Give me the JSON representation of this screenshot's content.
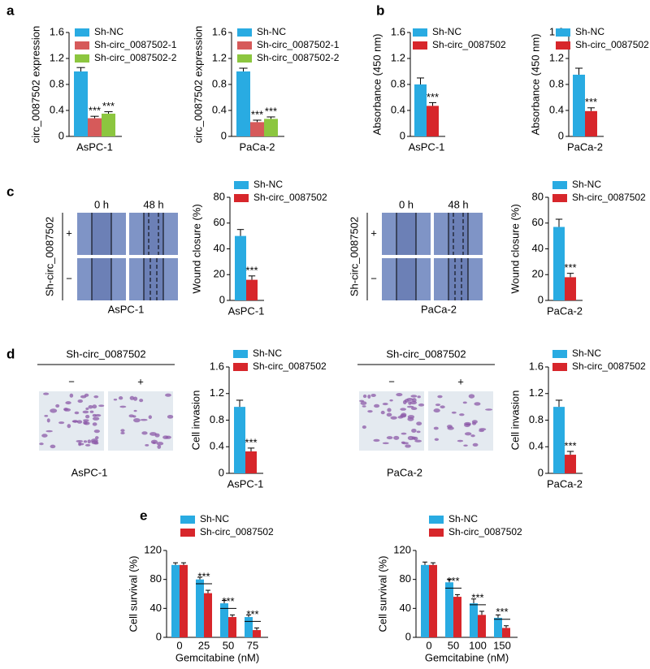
{
  "panel_labels": [
    "a",
    "b",
    "c",
    "d",
    "e"
  ],
  "chart_data": [
    {
      "type": "bar",
      "ylabel": "circ_0087502 expression",
      "categories": [
        "AsPC-1"
      ],
      "ylim": [
        0,
        1.6
      ],
      "yticks": [
        0,
        0.4,
        0.8,
        1.2,
        1.6
      ],
      "series": [
        {
          "name": "Sh-NC",
          "color": "#29abe2",
          "values": [
            1.0
          ],
          "errors": [
            0.06
          ]
        },
        {
          "name": "Sh-circ_0087502-1",
          "color": "#d65a5a",
          "values": [
            0.28
          ],
          "errors": [
            0.03
          ],
          "significance": "***"
        },
        {
          "name": "Sh-circ_0087502-2",
          "color": "#8cc63f",
          "values": [
            0.35
          ],
          "errors": [
            0.03
          ],
          "significance": "***"
        }
      ]
    },
    {
      "type": "bar",
      "ylabel": "circ_0087502 expression",
      "categories": [
        "PaCa-2"
      ],
      "ylim": [
        0,
        1.6
      ],
      "yticks": [
        0,
        0.4,
        0.8,
        1.2,
        1.6
      ],
      "series": [
        {
          "name": "Sh-NC",
          "color": "#29abe2",
          "values": [
            1.0
          ],
          "errors": [
            0.05
          ]
        },
        {
          "name": "Sh-circ_0087502-1",
          "color": "#d65a5a",
          "values": [
            0.22
          ],
          "errors": [
            0.03
          ],
          "significance": "***"
        },
        {
          "name": "Sh-circ_0087502-2",
          "color": "#8cc63f",
          "values": [
            0.27
          ],
          "errors": [
            0.03
          ],
          "significance": "***"
        }
      ]
    },
    {
      "type": "bar",
      "ylabel": "Absorbance (450 nm)",
      "categories": [
        "AsPC-1"
      ],
      "ylim": [
        0,
        1.6
      ],
      "yticks": [
        0,
        0.4,
        0.8,
        1.2,
        1.6
      ],
      "series": [
        {
          "name": "Sh-NC",
          "color": "#29abe2",
          "values": [
            0.8
          ],
          "errors": [
            0.1
          ]
        },
        {
          "name": "Sh-circ_0087502",
          "color": "#d7262b",
          "values": [
            0.47
          ],
          "errors": [
            0.05
          ],
          "significance": "***"
        }
      ]
    },
    {
      "type": "bar",
      "ylabel": "Absorbance (450 nm)",
      "categories": [
        "PaCa-2"
      ],
      "ylim": [
        0,
        1.6
      ],
      "yticks": [
        0,
        0.4,
        0.8,
        1.2,
        1.6
      ],
      "series": [
        {
          "name": "Sh-NC",
          "color": "#29abe2",
          "values": [
            0.95
          ],
          "errors": [
            0.1
          ]
        },
        {
          "name": "Sh-circ_0087502",
          "color": "#d7262b",
          "values": [
            0.39
          ],
          "errors": [
            0.05
          ],
          "significance": "***"
        }
      ]
    },
    {
      "type": "bar",
      "ylabel": "Wound closure (%)",
      "categories": [
        "AsPC-1"
      ],
      "ylim": [
        0,
        80
      ],
      "yticks": [
        0,
        20,
        40,
        60,
        80
      ],
      "series": [
        {
          "name": "Sh-NC",
          "color": "#29abe2",
          "values": [
            50
          ],
          "errors": [
            5
          ]
        },
        {
          "name": "Sh-circ_0087502",
          "color": "#d7262b",
          "values": [
            16
          ],
          "errors": [
            3
          ],
          "significance": "***"
        }
      ]
    },
    {
      "type": "bar",
      "ylabel": "Wound closure (%)",
      "categories": [
        "PaCa-2"
      ],
      "ylim": [
        0,
        80
      ],
      "yticks": [
        0,
        20,
        40,
        60,
        80
      ],
      "series": [
        {
          "name": "Sh-NC",
          "color": "#29abe2",
          "values": [
            57
          ],
          "errors": [
            6
          ]
        },
        {
          "name": "Sh-circ_0087502",
          "color": "#d7262b",
          "values": [
            18
          ],
          "errors": [
            3
          ],
          "significance": "***"
        }
      ]
    },
    {
      "type": "bar",
      "ylabel": "Cell invasion",
      "categories": [
        "AsPC-1"
      ],
      "ylim": [
        0,
        1.6
      ],
      "yticks": [
        0,
        0.4,
        0.8,
        1.2,
        1.6
      ],
      "series": [
        {
          "name": "Sh-NC",
          "color": "#29abe2",
          "values": [
            1.0
          ],
          "errors": [
            0.1
          ]
        },
        {
          "name": "Sh-circ_0087502",
          "color": "#d7262b",
          "values": [
            0.33
          ],
          "errors": [
            0.05
          ],
          "significance": "***"
        }
      ]
    },
    {
      "type": "bar",
      "ylabel": "Cell invasion",
      "categories": [
        "PaCa-2"
      ],
      "ylim": [
        0,
        1.6
      ],
      "yticks": [
        0,
        0.4,
        0.8,
        1.2,
        1.6
      ],
      "series": [
        {
          "name": "Sh-NC",
          "color": "#29abe2",
          "values": [
            1.0
          ],
          "errors": [
            0.1
          ]
        },
        {
          "name": "Sh-circ_0087502",
          "color": "#d7262b",
          "values": [
            0.28
          ],
          "errors": [
            0.05
          ],
          "significance": "***"
        }
      ]
    },
    {
      "type": "bar",
      "ylabel": "Cell survival (%)",
      "xlabel": "Gemcitabine (nM)",
      "categories": [
        "0",
        "25",
        "50",
        "75"
      ],
      "ylim": [
        0,
        120
      ],
      "yticks": [
        0,
        40,
        80,
        120
      ],
      "series": [
        {
          "name": "Sh-NC",
          "color": "#29abe2",
          "values": [
            100,
            80,
            47,
            28
          ],
          "errors": [
            3,
            3,
            4,
            3
          ]
        },
        {
          "name": "Sh-circ_0087502",
          "color": "#d7262b",
          "values": [
            100,
            61,
            28,
            10
          ],
          "errors": [
            3,
            4,
            3,
            3
          ],
          "significance": [
            null,
            "***",
            "***",
            "***"
          ]
        }
      ]
    },
    {
      "type": "bar",
      "ylabel": "Cell survival (%)",
      "xlabel": "Gemcitabine (nM)",
      "categories": [
        "0",
        "50",
        "100",
        "150"
      ],
      "ylim": [
        0,
        120
      ],
      "yticks": [
        0,
        40,
        80,
        120
      ],
      "series": [
        {
          "name": "Sh-NC",
          "color": "#29abe2",
          "values": [
            100,
            76,
            47,
            27
          ],
          "errors": [
            4,
            4,
            6,
            4
          ]
        },
        {
          "name": "Sh-circ_0087502",
          "color": "#d7262b",
          "values": [
            100,
            56,
            31,
            13
          ],
          "errors": [
            3,
            3,
            5,
            3
          ],
          "significance": [
            null,
            "***",
            "***",
            "***"
          ]
        }
      ]
    }
  ],
  "wound_assays": [
    {
      "group_label": "Sh-circ_0087502",
      "columns": [
        "0 h",
        "48 h"
      ],
      "rows": [
        "+",
        "−"
      ],
      "cell_line": "AsPC-1"
    },
    {
      "group_label": "Sh-circ_0087502",
      "columns": [
        "0 h",
        "48 h"
      ],
      "rows": [
        "+",
        "−"
      ],
      "cell_line": "PaCa-2"
    }
  ],
  "invasion_assays": [
    {
      "group_label": "Sh-circ_0087502",
      "columns": [
        "−",
        "+"
      ],
      "cell_line": "AsPC-1"
    },
    {
      "group_label": "Sh-circ_0087502",
      "columns": [
        "−",
        "+"
      ],
      "cell_line": "PaCa-2"
    }
  ]
}
